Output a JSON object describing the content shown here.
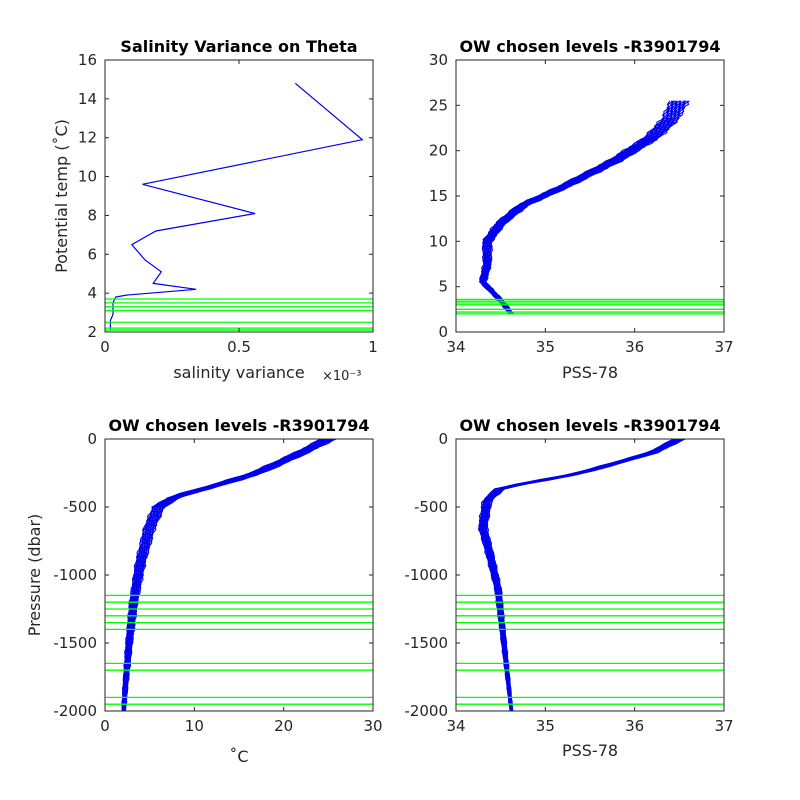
{
  "colors": {
    "profile": "#0000ee",
    "levels": "#00ff00",
    "axis": "#262626"
  },
  "chart_data": [
    {
      "type": "line",
      "title": "Salinity Variance on Theta",
      "xlabel": "salinity variance",
      "x_exponent": "×10⁻³",
      "ylabel": "Potential temp (˚C)",
      "xlim": [
        0,
        1
      ],
      "ylim": [
        2,
        16
      ],
      "xticks": [
        "0",
        "0.5",
        "1"
      ],
      "yticks": [
        "2",
        "4",
        "6",
        "8",
        "10",
        "12",
        "14",
        "16"
      ],
      "series": [
        {
          "x": [
            0.71,
            0.96,
            0.14,
            0.56,
            0.19,
            0.1,
            0.15,
            0.21,
            0.18,
            0.34,
            0.08,
            0.04,
            0.03,
            0.03,
            0.03,
            0.02,
            0.02,
            0.02
          ],
          "y": [
            14.8,
            11.9,
            9.6,
            8.1,
            7.2,
            6.5,
            5.7,
            5.1,
            4.5,
            4.2,
            3.9,
            3.8,
            3.5,
            3.2,
            2.9,
            2.6,
            2.3,
            2.1
          ]
        }
      ],
      "levels": [
        3.7,
        3.5,
        3.3,
        3.1,
        2.5,
        2.2,
        2.1
      ]
    },
    {
      "type": "line",
      "title": "OW chosen levels -R3901794",
      "xlabel": "PSS-78",
      "ylabel": "",
      "xlim": [
        34,
        37
      ],
      "ylim": [
        0,
        30
      ],
      "xticks": [
        "34",
        "35",
        "36",
        "37"
      ],
      "yticks": [
        "0",
        "5",
        "10",
        "15",
        "20",
        "25",
        "30"
      ],
      "band": {
        "center": [
          [
            34.62,
            2
          ],
          [
            34.5,
            3.5
          ],
          [
            34.3,
            5.5
          ],
          [
            34.35,
            7.5
          ],
          [
            34.35,
            10
          ],
          [
            34.5,
            12
          ],
          [
            34.75,
            14
          ],
          [
            35.2,
            16
          ],
          [
            35.8,
            19
          ],
          [
            36.2,
            21.5
          ],
          [
            36.4,
            23.5
          ],
          [
            36.5,
            25.5
          ]
        ],
        "halfwidth": 0.1,
        "count": 18
      },
      "levels": [
        3.6,
        3.4,
        3.2,
        3.0,
        2.5,
        2.2,
        2.0
      ]
    },
    {
      "type": "line",
      "title": "OW chosen levels -R3901794",
      "xlabel": "˚C",
      "ylabel": "Pressure (dbar)",
      "xlim": [
        0,
        30
      ],
      "ylim": [
        -2000,
        0
      ],
      "xticks": [
        "0",
        "10",
        "20",
        "30"
      ],
      "yticks": [
        "-2000",
        "-1500",
        "-1000",
        "-500",
        "0"
      ],
      "band": {
        "center": [
          [
            25,
            0
          ],
          [
            22,
            -100
          ],
          [
            17,
            -250
          ],
          [
            12,
            -350
          ],
          [
            8,
            -420
          ],
          [
            6,
            -500
          ],
          [
            5,
            -650
          ],
          [
            4,
            -900
          ],
          [
            3.2,
            -1200
          ],
          [
            2.7,
            -1500
          ],
          [
            2.3,
            -1800
          ],
          [
            2.1,
            -2000
          ]
        ],
        "halfwidth": 0.8,
        "count": 18
      },
      "levels": [
        -1150,
        -1200,
        -1250,
        -1300,
        -1350,
        -1400,
        -1650,
        -1700,
        -1900,
        -1950
      ]
    },
    {
      "type": "line",
      "title": "OW chosen levels -R3901794",
      "xlabel": "PSS-78",
      "ylabel": "",
      "xlim": [
        34,
        37
      ],
      "ylim": [
        -2000,
        0
      ],
      "xticks": [
        "34",
        "35",
        "36",
        "37"
      ],
      "yticks": [
        "-2000",
        "-1500",
        "-1000",
        "-500",
        "0"
      ],
      "band": {
        "center": [
          [
            36.5,
            0
          ],
          [
            36.2,
            -100
          ],
          [
            35.4,
            -250
          ],
          [
            34.5,
            -360
          ],
          [
            34.35,
            -450
          ],
          [
            34.3,
            -650
          ],
          [
            34.38,
            -850
          ],
          [
            34.47,
            -1100
          ],
          [
            34.52,
            -1400
          ],
          [
            34.57,
            -1700
          ],
          [
            34.62,
            -2000
          ]
        ],
        "halfwidth": 0.06,
        "count": 18
      },
      "levels": [
        -1150,
        -1200,
        -1250,
        -1300,
        -1350,
        -1400,
        -1650,
        -1700,
        -1900,
        -1950
      ]
    }
  ]
}
